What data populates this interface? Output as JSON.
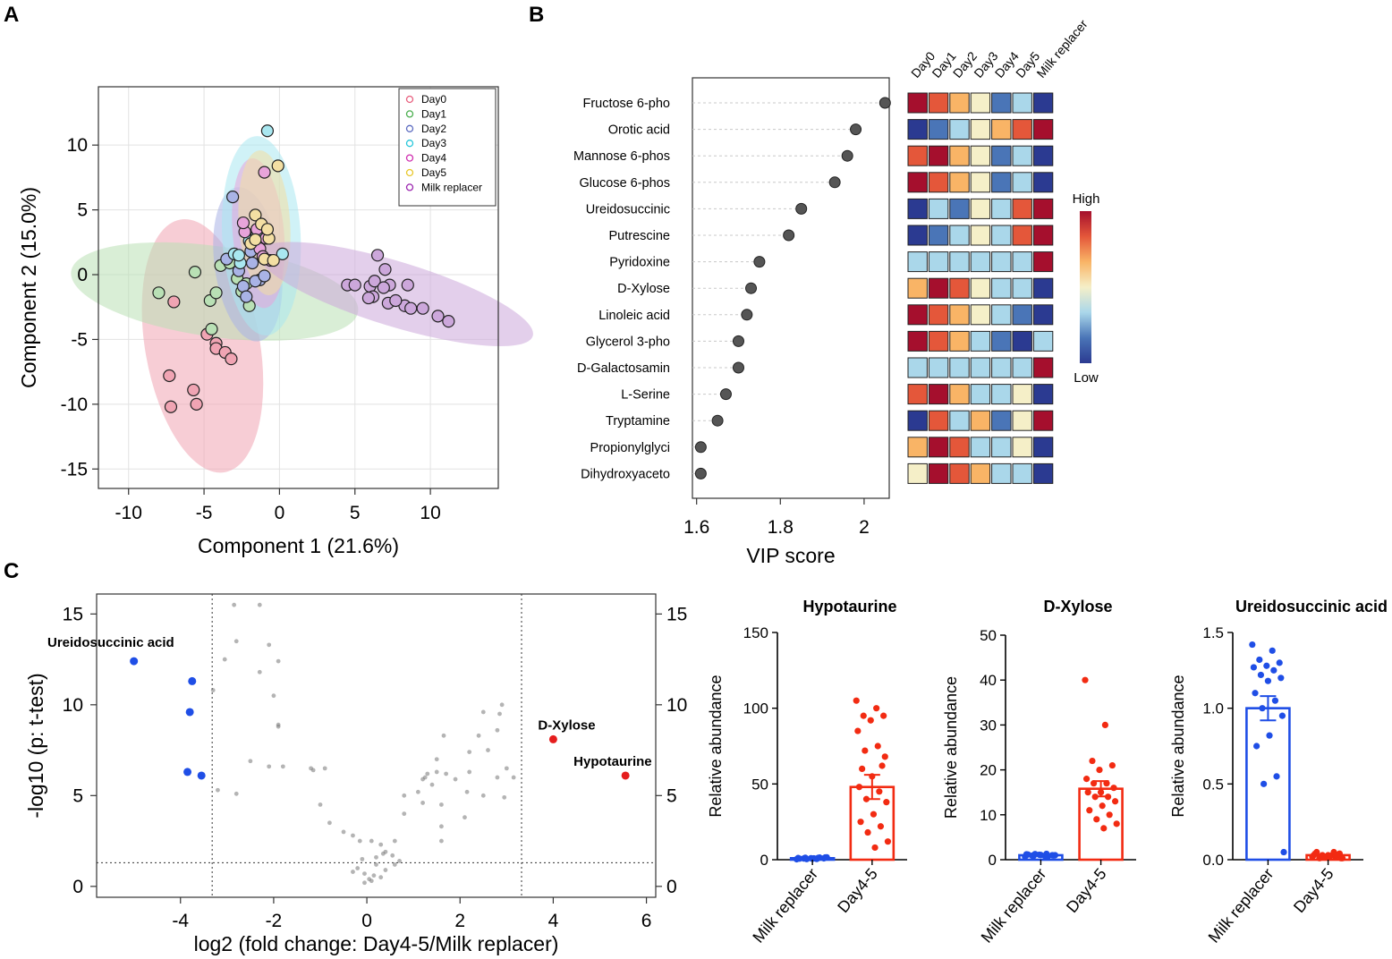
{
  "panels": {
    "A": "A",
    "B": "B",
    "C": "C"
  },
  "chart_data": [
    {
      "id": "A",
      "type": "scatter",
      "title": "",
      "xlabel": "Component 1 (21.6%)",
      "ylabel": "Component 2 (15.0%)",
      "xlim": [
        -12,
        14.5
      ],
      "ylim": [
        -16.5,
        14.5
      ],
      "xticks": [
        -10,
        -5,
        0,
        5,
        10
      ],
      "yticks": [
        -15,
        -10,
        -5,
        0,
        5,
        10
      ],
      "grid": true,
      "legend_position": "top-right",
      "series": [
        {
          "name": "Day0",
          "color": "#e8607f",
          "fill": "#f0a4b3",
          "ellipse": {
            "cx": -5.1,
            "cy": -5.5,
            "rx": 3.8,
            "ry": 9.9,
            "angle": 10
          },
          "points": [
            [
              -7.3,
              -7.8
            ],
            [
              -7.2,
              -10.2
            ],
            [
              -5.7,
              -8.9
            ],
            [
              -5.5,
              -10.0
            ],
            [
              -4.8,
              -4.6
            ],
            [
              -4.2,
              -5.3
            ],
            [
              -4.2,
              -5.7
            ],
            [
              -3.6,
              -6.0
            ],
            [
              -3.2,
              -6.5
            ],
            [
              -7.0,
              -2.1
            ]
          ]
        },
        {
          "name": "Day1",
          "color": "#4caf50",
          "fill": "#b9e0b5",
          "ellipse": {
            "cx": -4.3,
            "cy": -1.3,
            "rx": 9.6,
            "ry": 3.5,
            "angle": -8
          },
          "points": [
            [
              -8.0,
              -1.4
            ],
            [
              -5.6,
              0.2
            ],
            [
              -4.6,
              -2.0
            ],
            [
              -4.2,
              -1.4
            ],
            [
              -3.9,
              0.7
            ],
            [
              -3.3,
              0.9
            ],
            [
              -2.8,
              -0.3
            ],
            [
              -2.5,
              -1.3
            ],
            [
              -2.0,
              -2.4
            ],
            [
              -2.2,
              -0.7
            ],
            [
              -4.5,
              -4.2
            ]
          ]
        },
        {
          "name": "Day2",
          "color": "#5c6bc0",
          "fill": "#a9b3e6",
          "ellipse": {
            "cx": -2.1,
            "cy": 0.8,
            "rx": 2.2,
            "ry": 6.0,
            "angle": 8
          },
          "points": [
            [
              -3.1,
              6.0
            ],
            [
              -3.5,
              1.2
            ],
            [
              -2.7,
              0.3
            ],
            [
              -2.4,
              -0.9
            ],
            [
              -1.9,
              1.8
            ],
            [
              -1.8,
              0.9
            ],
            [
              -1.3,
              -0.4
            ],
            [
              -2.2,
              -1.7
            ],
            [
              -1.6,
              -0.5
            ],
            [
              -1.0,
              -0.1
            ]
          ]
        },
        {
          "name": "Day3",
          "color": "#26c6da",
          "fill": "#a9e7f0",
          "ellipse": {
            "cx": -1.2,
            "cy": 3.0,
            "rx": 2.6,
            "ry": 7.7,
            "angle": 3
          },
          "points": [
            [
              -0.8,
              11.1
            ],
            [
              -3.0,
              1.6
            ],
            [
              -2.6,
              0.9
            ],
            [
              -1.0,
              1.2
            ],
            [
              0.2,
              1.6
            ],
            [
              -2.0,
              2.6
            ],
            [
              -1.5,
              3.1
            ],
            [
              -2.7,
              1.5
            ]
          ]
        },
        {
          "name": "Day4",
          "color": "#d02fb0",
          "fill": "#e8a4da",
          "ellipse": {
            "cx": -1.4,
            "cy": 3.2,
            "rx": 1.7,
            "ry": 5.8,
            "angle": 5
          },
          "points": [
            [
              -1.0,
              7.9
            ],
            [
              -2.3,
              3.3
            ],
            [
              -1.5,
              3.5
            ],
            [
              -1.3,
              2.0
            ],
            [
              -0.9,
              2.8
            ],
            [
              -0.6,
              1.1
            ],
            [
              -2.4,
              4.0
            ],
            [
              -1.1,
              1.4
            ]
          ]
        },
        {
          "name": "Day5",
          "color": "#e8c72b",
          "fill": "#f3dfa3",
          "ellipse": {
            "cx": -1.0,
            "cy": 4.0,
            "rx": 1.7,
            "ry": 5.6,
            "angle": 4
          },
          "points": [
            [
              -0.1,
              8.4
            ],
            [
              -1.6,
              4.6
            ],
            [
              -1.2,
              3.9
            ],
            [
              -1.9,
              2.4
            ],
            [
              -1.6,
              2.7
            ],
            [
              -0.7,
              2.8
            ],
            [
              -1.0,
              1.2
            ],
            [
              -0.4,
              1.1
            ],
            [
              -0.8,
              3.5
            ]
          ]
        },
        {
          "name": "Milk replacer",
          "color": "#9c27b0",
          "fill": "#cca7db",
          "ellipse": {
            "cx": 7.7,
            "cy": -1.5,
            "rx": 9.5,
            "ry": 2.5,
            "angle": -17
          },
          "points": [
            [
              4.5,
              -0.8
            ],
            [
              5.0,
              -0.8
            ],
            [
              6.0,
              -0.9
            ],
            [
              6.5,
              1.5
            ],
            [
              7.0,
              0.4
            ],
            [
              6.3,
              -0.5
            ],
            [
              7.3,
              -0.8
            ],
            [
              8.5,
              -0.8
            ],
            [
              7.2,
              -2.2
            ],
            [
              8.3,
              -2.4
            ],
            [
              8.7,
              -2.6
            ],
            [
              9.5,
              -2.6
            ],
            [
              10.5,
              -3.2
            ],
            [
              11.2,
              -3.6
            ],
            [
              6.2,
              -1.7
            ],
            [
              7.7,
              -2.0
            ],
            [
              6.9,
              -1.0
            ],
            [
              5.9,
              -1.8
            ]
          ]
        }
      ]
    },
    {
      "id": "B",
      "type": "dot",
      "title": "",
      "xlabel": "VIP score",
      "ylabel": "",
      "xlim": [
        1.59,
        2.06
      ],
      "xticks": [
        1.6,
        1.8,
        2.0
      ],
      "xtick_labels": [
        "1.6",
        "1.8",
        "2"
      ],
      "categories": [
        "Fructose 6-pho",
        "Orotic acid",
        "Mannose 6-phos",
        "Glucose 6-phos",
        "Ureidosuccinic",
        "Putrescine",
        "Pyridoxine",
        "D-Xylose",
        "Linoleic acid",
        "Glycerol 3-pho",
        "D-Galactosamin",
        "L-Serine",
        "Tryptamine",
        "Propionylglyci",
        "Dihydroxyaceto"
      ],
      "values": [
        2.05,
        1.98,
        1.96,
        1.93,
        1.85,
        1.82,
        1.75,
        1.73,
        1.72,
        1.7,
        1.7,
        1.67,
        1.65,
        1.61,
        1.61
      ],
      "heatmap": {
        "columns": [
          "Day0",
          "Day1",
          "Day2",
          "Day3",
          "Day4",
          "Day5",
          "Milk replacer"
        ],
        "levels_note": "1=low(dark blue) ... 7=high(dark red)",
        "values": [
          [
            7,
            6,
            5,
            4,
            2,
            3,
            1
          ],
          [
            1,
            2,
            3,
            4,
            5,
            6,
            7
          ],
          [
            6,
            7,
            5,
            4,
            2,
            3,
            1
          ],
          [
            7,
            6,
            5,
            4,
            2,
            3,
            1
          ],
          [
            1,
            3,
            2,
            4,
            3,
            6,
            7
          ],
          [
            1,
            2,
            3,
            4,
            3,
            6,
            7
          ],
          [
            3,
            3,
            3,
            3,
            3,
            3,
            7
          ],
          [
            5,
            7,
            6,
            4,
            3,
            3,
            1
          ],
          [
            7,
            6,
            5,
            4,
            3,
            2,
            1
          ],
          [
            7,
            6,
            5,
            3,
            2,
            1,
            3
          ],
          [
            3,
            3,
            3,
            3,
            3,
            3,
            7
          ],
          [
            6,
            7,
            5,
            3,
            3,
            4,
            1
          ],
          [
            1,
            6,
            3,
            5,
            2,
            4,
            7
          ],
          [
            5,
            7,
            6,
            3,
            3,
            4,
            1
          ],
          [
            4,
            7,
            6,
            5,
            3,
            3,
            1
          ]
        ],
        "palette": [
          "#2b3a91",
          "#4a75b7",
          "#aad7ea",
          "#f5efc8",
          "#f9b466",
          "#e4573a",
          "#a50f2d"
        ],
        "colorbar": {
          "high": "High",
          "low": "Low"
        }
      }
    },
    {
      "id": "C-volcano",
      "type": "scatter",
      "title": "",
      "xlabel": "log2 (fold change: Day4-5/Milk replacer)",
      "ylabel": "-log10 (p: t-test)",
      "xlim": [
        -5.8,
        6.2
      ],
      "ylim": [
        -0.6,
        16.1
      ],
      "xticks": [
        -4,
        -2,
        0,
        2,
        4,
        6
      ],
      "yticks": [
        0,
        5,
        10,
        15
      ],
      "thresholds": {
        "x": [
          -3.32,
          3.32
        ],
        "y": 1.3
      },
      "highlighted": [
        {
          "label": "Ureidosuccinic acid",
          "x": -5.0,
          "y": 12.4,
          "color": "#1f4ee6"
        },
        {
          "label": "",
          "x": -3.75,
          "y": 11.3,
          "color": "#1f4ee6"
        },
        {
          "label": "",
          "x": -3.8,
          "y": 9.6,
          "color": "#1f4ee6"
        },
        {
          "label": "",
          "x": -3.85,
          "y": 6.3,
          "color": "#1f4ee6"
        },
        {
          "label": "",
          "x": -3.55,
          "y": 6.1,
          "color": "#1f4ee6"
        },
        {
          "label": "D-Xylose",
          "x": 4.0,
          "y": 8.1,
          "color": "#e51d1d"
        },
        {
          "label": "Hypotaurine",
          "x": 5.55,
          "y": 6.1,
          "color": "#e51d1d"
        }
      ],
      "background_points": [
        [
          -2.85,
          15.5
        ],
        [
          -2.3,
          15.5
        ],
        [
          -2.8,
          13.5
        ],
        [
          -2.1,
          13.3
        ],
        [
          -1.9,
          12.4
        ],
        [
          -3.05,
          12.5
        ],
        [
          -2.3,
          11.8
        ],
        [
          -3.3,
          10.8
        ],
        [
          -2.0,
          10.5
        ],
        [
          -1.9,
          8.9
        ],
        [
          -1.9,
          8.8
        ],
        [
          -2.1,
          6.6
        ],
        [
          -2.5,
          6.9
        ],
        [
          -1.8,
          6.6
        ],
        [
          -1.2,
          6.5
        ],
        [
          -1.15,
          6.4
        ],
        [
          -0.9,
          6.5
        ],
        [
          -3.2,
          5.3
        ],
        [
          -2.8,
          5.1
        ],
        [
          -1.0,
          4.5
        ],
        [
          -0.8,
          3.5
        ],
        [
          -0.5,
          3.0
        ],
        [
          -0.3,
          2.8
        ],
        [
          -0.15,
          2.5
        ],
        [
          0.1,
          2.5
        ],
        [
          0.3,
          2.3
        ],
        [
          0.35,
          1.8
        ],
        [
          0.4,
          1.9
        ],
        [
          -0.1,
          1.5
        ],
        [
          -0.2,
          1.0
        ],
        [
          -0.3,
          0.8
        ],
        [
          -0.05,
          0.2
        ],
        [
          0.05,
          0.4
        ],
        [
          0.1,
          0.3
        ],
        [
          0.15,
          0.6
        ],
        [
          0.3,
          0.5
        ],
        [
          0.4,
          0.9
        ],
        [
          -0.05,
          0.7
        ],
        [
          0.2,
          1.2
        ],
        [
          0.2,
          1.6
        ],
        [
          0.55,
          1.7
        ],
        [
          0.6,
          2.5
        ],
        [
          0.6,
          1.2
        ],
        [
          0.7,
          1.4
        ],
        [
          0.8,
          4.0
        ],
        [
          0.8,
          5.0
        ],
        [
          1.1,
          5.2
        ],
        [
          1.2,
          4.6
        ],
        [
          1.2,
          5.9
        ],
        [
          1.25,
          6.0
        ],
        [
          1.3,
          6.2
        ],
        [
          1.4,
          5.6
        ],
        [
          1.5,
          7.0
        ],
        [
          1.5,
          6.3
        ],
        [
          1.6,
          4.5
        ],
        [
          1.6,
          3.3
        ],
        [
          1.6,
          2.5
        ],
        [
          1.65,
          8.3
        ],
        [
          1.7,
          6.2
        ],
        [
          1.9,
          5.9
        ],
        [
          2.1,
          3.8
        ],
        [
          2.15,
          5.2
        ],
        [
          2.2,
          6.3
        ],
        [
          2.2,
          7.4
        ],
        [
          2.4,
          8.3
        ],
        [
          2.5,
          9.6
        ],
        [
          2.6,
          7.5
        ],
        [
          2.8,
          8.6
        ],
        [
          2.85,
          9.5
        ],
        [
          2.8,
          6.0
        ],
        [
          2.5,
          5.0
        ],
        [
          2.9,
          10.0
        ],
        [
          3.0,
          6.5
        ],
        [
          3.15,
          6.0
        ],
        [
          2.95,
          4.9
        ]
      ]
    },
    {
      "id": "C-hypotaurine",
      "type": "bar",
      "title": "Hypotaurine",
      "xlabel": "",
      "ylabel": "Relative abundance",
      "categories": [
        "Milk replacer",
        "Day4-5"
      ],
      "values": [
        1.0,
        48
      ],
      "errors": [
        0.3,
        8
      ],
      "colors": [
        "#1f4ee6",
        "#f22b12"
      ],
      "ylim": [
        0,
        150
      ],
      "yticks": [
        0,
        50,
        100,
        150
      ],
      "points": [
        [
          0.3,
          0.5,
          0.8,
          0.9,
          1.0,
          1.1,
          1.2,
          1.3,
          1.5,
          0.6,
          0.7,
          1.4,
          0.4,
          1.6,
          0.9
        ],
        [
          105,
          100,
          95,
          95,
          92,
          85,
          75,
          72,
          68,
          55,
          48,
          45,
          40,
          38,
          30,
          25,
          22,
          18,
          12,
          8,
          60,
          62
        ]
      ]
    },
    {
      "id": "C-xylose",
      "type": "bar",
      "title": "D-Xylose",
      "xlabel": "",
      "ylabel": "Relative abundance",
      "categories": [
        "Milk replacer",
        "Day4-5"
      ],
      "values": [
        1.0,
        15.8
      ],
      "errors": [
        0.1,
        1.7
      ],
      "colors": [
        "#1f4ee6",
        "#f22b12"
      ],
      "ylim": [
        0,
        50
      ],
      "yticks": [
        0,
        10,
        20,
        30,
        40,
        50
      ],
      "points": [
        [
          0.7,
          0.8,
          0.9,
          1.0,
          1.1,
          1.2,
          1.3,
          0.85,
          0.95,
          1.05,
          1.15,
          0.75,
          1.25,
          1.0
        ],
        [
          40,
          30,
          22,
          21,
          20,
          18,
          17,
          17,
          16,
          15,
          15,
          14,
          14,
          13,
          12,
          11,
          10,
          9,
          8,
          7
        ]
      ]
    },
    {
      "id": "C-ureidosuccinic",
      "type": "bar",
      "title": "Ureidosuccinic acid",
      "xlabel": "",
      "ylabel": "Relative abundance",
      "categories": [
        "Milk replacer",
        "Day4-5"
      ],
      "values": [
        1.0,
        0.03
      ],
      "errors": [
        0.08,
        0.005
      ],
      "colors": [
        "#1f4ee6",
        "#f22b12"
      ],
      "ylim": [
        0,
        1.5
      ],
      "yticks": [
        0.0,
        0.5,
        1.0,
        1.5
      ],
      "ytick_labels": [
        "0.0",
        "0.5",
        "1.0",
        "1.5"
      ],
      "points": [
        [
          1.42,
          1.38,
          1.32,
          1.3,
          1.28,
          1.27,
          1.25,
          1.22,
          1.2,
          1.18,
          1.1,
          1.05,
          1.0,
          0.95,
          0.82,
          0.75,
          0.55,
          0.5,
          0.05
        ],
        [
          0.02,
          0.03,
          0.01,
          0.04,
          0.02,
          0.03,
          0.05,
          0.02,
          0.01,
          0.03,
          0.04,
          0.02,
          0.03,
          0.01,
          0.02,
          0.05,
          0.03,
          0.02
        ]
      ]
    }
  ]
}
